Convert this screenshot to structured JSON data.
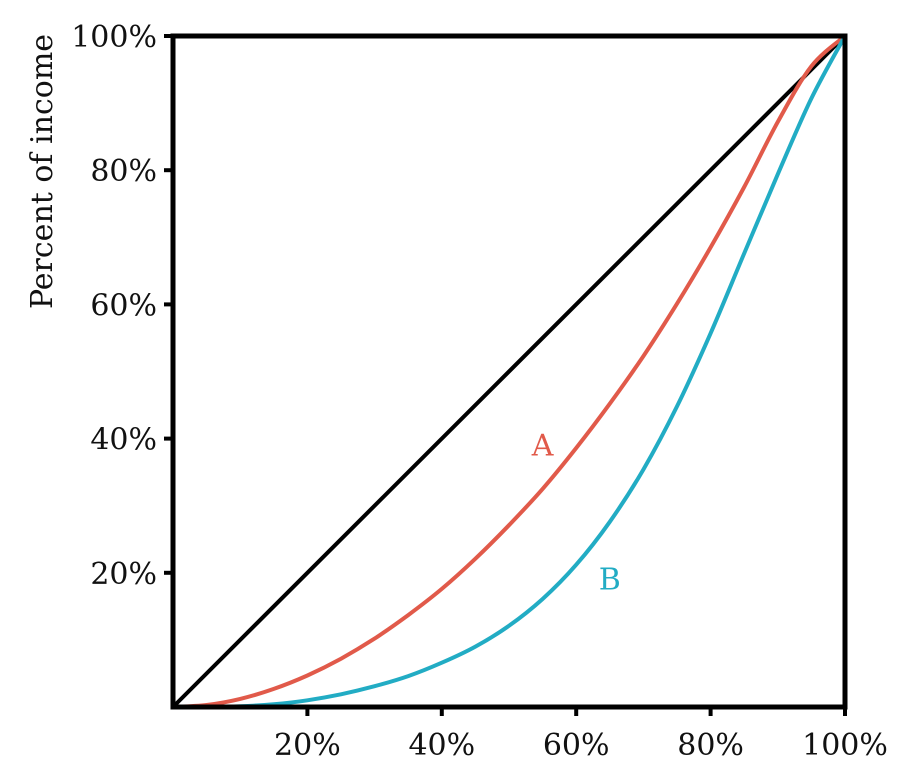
{
  "chart_data": {
    "type": "line",
    "title": "",
    "xlabel": "",
    "ylabel": "Percent of income",
    "xlim": [
      0,
      100
    ],
    "ylim": [
      0,
      100
    ],
    "grid": false,
    "x_ticks": [
      20,
      40,
      60,
      80,
      100
    ],
    "x_tick_labels": [
      "20%",
      "40%",
      "60%",
      "80%",
      "100%"
    ],
    "y_ticks": [
      20,
      40,
      60,
      80,
      100
    ],
    "y_tick_labels": [
      "20%",
      "40%",
      "60%",
      "80%",
      "100%"
    ],
    "series": [
      {
        "color": "#000000",
        "x": [
          0,
          100
        ],
        "y": [
          0,
          100
        ]
      },
      {
        "name": "A",
        "color": "#e15a4a",
        "x": [
          0,
          5,
          10,
          15,
          20,
          25,
          30,
          35,
          40,
          45,
          50,
          55,
          60,
          65,
          70,
          75,
          80,
          85,
          90,
          95,
          100
        ],
        "y": [
          0,
          0.3,
          1.2,
          2.7,
          4.7,
          7.2,
          10.2,
          13.7,
          17.6,
          22.1,
          27.1,
          32.5,
          38.6,
          45.2,
          52.3,
          60.1,
          68.5,
          77.5,
          87.2,
          95.5,
          100
        ]
      },
      {
        "name": "B",
        "color": "#22acc4",
        "x": [
          0,
          5,
          10,
          15,
          20,
          25,
          30,
          35,
          40,
          45,
          50,
          55,
          60,
          65,
          70,
          75,
          80,
          85,
          90,
          95,
          100
        ],
        "y": [
          0,
          0.0,
          0.1,
          0.4,
          1.0,
          1.9,
          3.1,
          4.6,
          6.6,
          9.0,
          12.1,
          16.1,
          21.2,
          27.6,
          35.4,
          44.8,
          55.7,
          67.6,
          79.4,
          90.7,
          100
        ]
      }
    ],
    "annotations": [
      {
        "text": "A",
        "x": 55,
        "y": 39,
        "color": "#e15a4a"
      },
      {
        "text": "B",
        "x": 65,
        "y": 19,
        "color": "#22acc4"
      }
    ]
  }
}
